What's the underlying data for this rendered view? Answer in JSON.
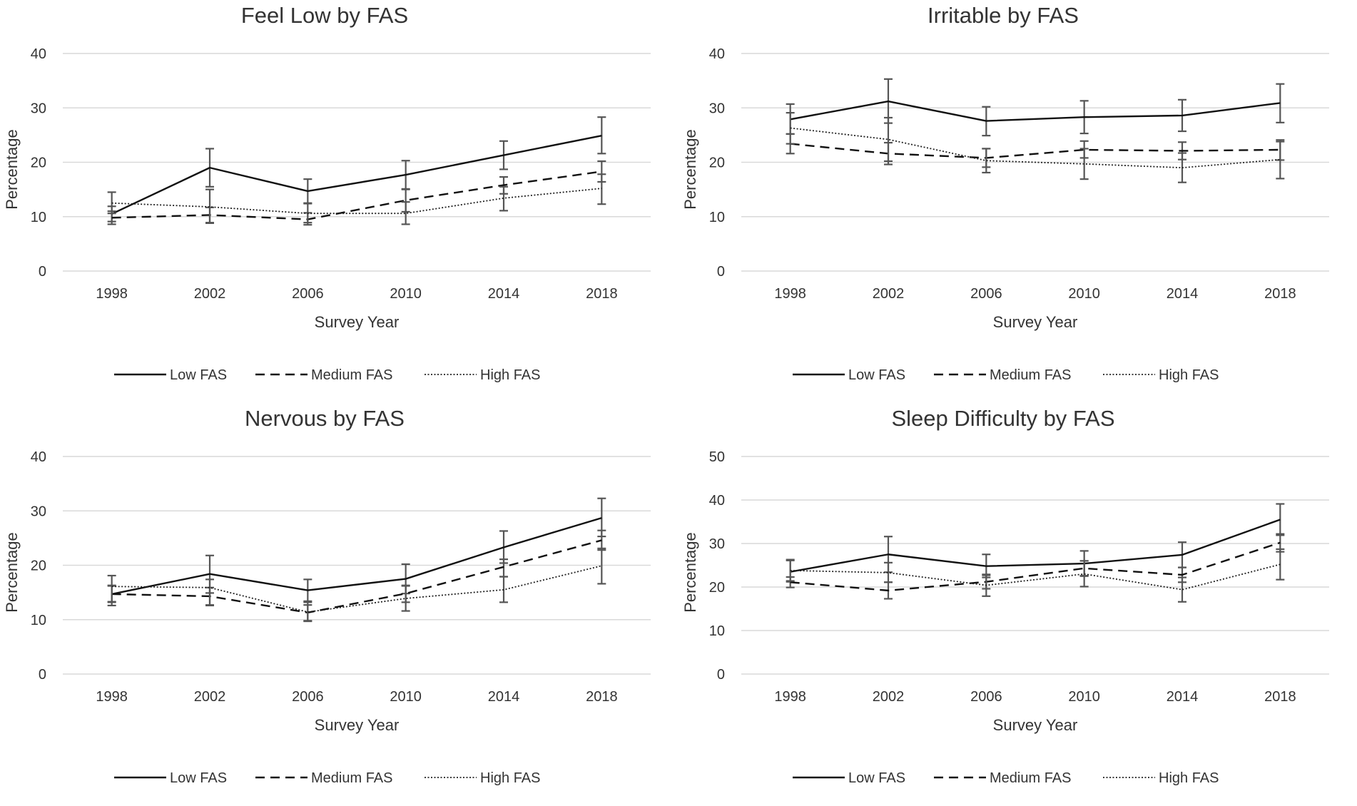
{
  "legend": {
    "low": "Low FAS",
    "medium": "Medium FAS",
    "high": "High FAS"
  },
  "chart_data": [
    {
      "type": "line",
      "title": "Feel Low by FAS",
      "xlabel": "Survey Year",
      "ylabel": "Percentage",
      "categories": [
        "1998",
        "2002",
        "2006",
        "2010",
        "2014",
        "2018"
      ],
      "ylim": [
        0,
        40
      ],
      "yticks": [
        "0",
        "10",
        "20",
        "30",
        "40"
      ],
      "series": [
        {
          "name": "Low FAS",
          "style": "solid",
          "values": [
            10.5,
            19,
            14.7,
            17.7,
            21.3,
            24.9
          ],
          "err_low": [
            9.1,
            15.5,
            12.5,
            15.1,
            18.7,
            21.6
          ],
          "err_high": [
            11.9,
            22.5,
            16.9,
            20.3,
            23.9,
            28.3
          ]
        },
        {
          "name": "Medium FAS",
          "style": "dashed",
          "values": [
            9.8,
            10.3,
            9.5,
            13,
            15.8,
            18.3
          ],
          "err_low": [
            8.6,
            8.9,
            8.5,
            10.9,
            14.2,
            16.4
          ],
          "err_high": [
            11,
            11.7,
            10.7,
            15,
            17.3,
            20.2
          ]
        },
        {
          "name": "High FAS",
          "style": "dotted",
          "values": [
            12.5,
            11.8,
            10.6,
            10.6,
            13.4,
            15.2
          ],
          "err_low": [
            10.6,
            8.8,
            8.9,
            8.6,
            11.1,
            12.3
          ],
          "err_high": [
            14.5,
            15,
            12.4,
            12.7,
            15.5,
            17.8
          ]
        }
      ]
    },
    {
      "type": "line",
      "title": "Irritable by FAS",
      "xlabel": "Survey Year",
      "ylabel": "Percentage",
      "categories": [
        "1998",
        "2002",
        "2006",
        "2010",
        "2014",
        "2018"
      ],
      "ylim": [
        0,
        40
      ],
      "yticks": [
        "0",
        "10",
        "20",
        "30",
        "40"
      ],
      "series": [
        {
          "name": "Low FAS",
          "style": "solid",
          "values": [
            27.9,
            31.2,
            27.6,
            28.3,
            28.6,
            30.9
          ],
          "err_low": [
            25.2,
            27.2,
            24.9,
            25.3,
            25.7,
            27.3
          ],
          "err_high": [
            30.7,
            35.3,
            30.2,
            31.3,
            31.5,
            34.4
          ]
        },
        {
          "name": "Medium FAS",
          "style": "dashed",
          "values": [
            23.4,
            21.6,
            20.8,
            22.3,
            22.1,
            22.3
          ],
          "err_low": [
            21.6,
            19.6,
            19.1,
            20.8,
            20.5,
            20.4
          ],
          "err_high": [
            25.2,
            23.6,
            22.5,
            23.9,
            23.7,
            24.1
          ]
        },
        {
          "name": "High FAS",
          "style": "dotted",
          "values": [
            26.3,
            24.2,
            20.3,
            19.7,
            19,
            20.5
          ],
          "err_low": [
            23.4,
            20.2,
            18.1,
            16.9,
            16.3,
            17
          ],
          "err_high": [
            29.1,
            28.2,
            22.5,
            22.5,
            21.7,
            23.8
          ]
        }
      ]
    },
    {
      "type": "line",
      "title": "Nervous by FAS",
      "xlabel": "Survey Year",
      "ylabel": "Percentage",
      "categories": [
        "1998",
        "2002",
        "2006",
        "2010",
        "2014",
        "2018"
      ],
      "ylim": [
        0,
        40
      ],
      "yticks": [
        "0",
        "10",
        "20",
        "30",
        "40"
      ],
      "series": [
        {
          "name": "Low FAS",
          "style": "solid",
          "values": [
            14.7,
            18.4,
            15.4,
            17.5,
            23.3,
            28.7
          ],
          "err_low": [
            13.2,
            14.9,
            13.4,
            14.8,
            20.4,
            25.3
          ],
          "err_high": [
            16.3,
            21.8,
            17.4,
            20.2,
            26.3,
            32.3
          ]
        },
        {
          "name": "Medium FAS",
          "style": "dashed",
          "values": [
            14.7,
            14.3,
            11.3,
            14.8,
            19.7,
            24.6
          ],
          "err_low": [
            13.3,
            12.7,
            9.8,
            13.2,
            17.9,
            22.8
          ],
          "err_high": [
            16.2,
            15.9,
            12.7,
            16.3,
            21.1,
            26.4
          ]
        },
        {
          "name": "High FAS",
          "style": "dotted",
          "values": [
            16.1,
            15.9,
            11.4,
            13.9,
            15.5,
            19.9
          ],
          "err_low": [
            12.6,
            12.6,
            9.7,
            11.6,
            13.2,
            16.6
          ],
          "err_high": [
            18.1,
            17.4,
            13.2,
            16.2,
            17.9,
            23.1
          ]
        }
      ]
    },
    {
      "type": "line",
      "title": "Sleep Difficulty by FAS",
      "xlabel": "Survey Year",
      "ylabel": "Percentage",
      "categories": [
        "1998",
        "2002",
        "2006",
        "2010",
        "2014",
        "2018"
      ],
      "ylim": [
        0,
        50
      ],
      "yticks": [
        "0",
        "10",
        "20",
        "30",
        "40",
        "50"
      ],
      "series": [
        {
          "name": "Low FAS",
          "style": "solid",
          "values": [
            23.5,
            27.5,
            24.8,
            25.4,
            27.4,
            35.5
          ],
          "err_low": [
            21.2,
            23.4,
            22.2,
            22.5,
            24.5,
            31.9
          ],
          "err_high": [
            26.1,
            31.6,
            27.5,
            28.3,
            30.3,
            39.1
          ]
        },
        {
          "name": "Medium FAS",
          "style": "dashed",
          "values": [
            21.1,
            19.2,
            21.2,
            24.3,
            22.8,
            30.2
          ],
          "err_low": [
            19.9,
            17.3,
            19.6,
            22.6,
            21.1,
            28.1
          ],
          "err_high": [
            22.3,
            21.1,
            22.7,
            26,
            24.5,
            32.2
          ]
        },
        {
          "name": "High FAS",
          "style": "dotted",
          "values": [
            23.8,
            23.3,
            20.4,
            23,
            19.4,
            25.2
          ],
          "err_low": [
            21.4,
            21.1,
            17.9,
            20.1,
            16.6,
            21.7
          ],
          "err_high": [
            26.3,
            25.6,
            22.9,
            26,
            22.2,
            28.7
          ]
        }
      ]
    }
  ]
}
